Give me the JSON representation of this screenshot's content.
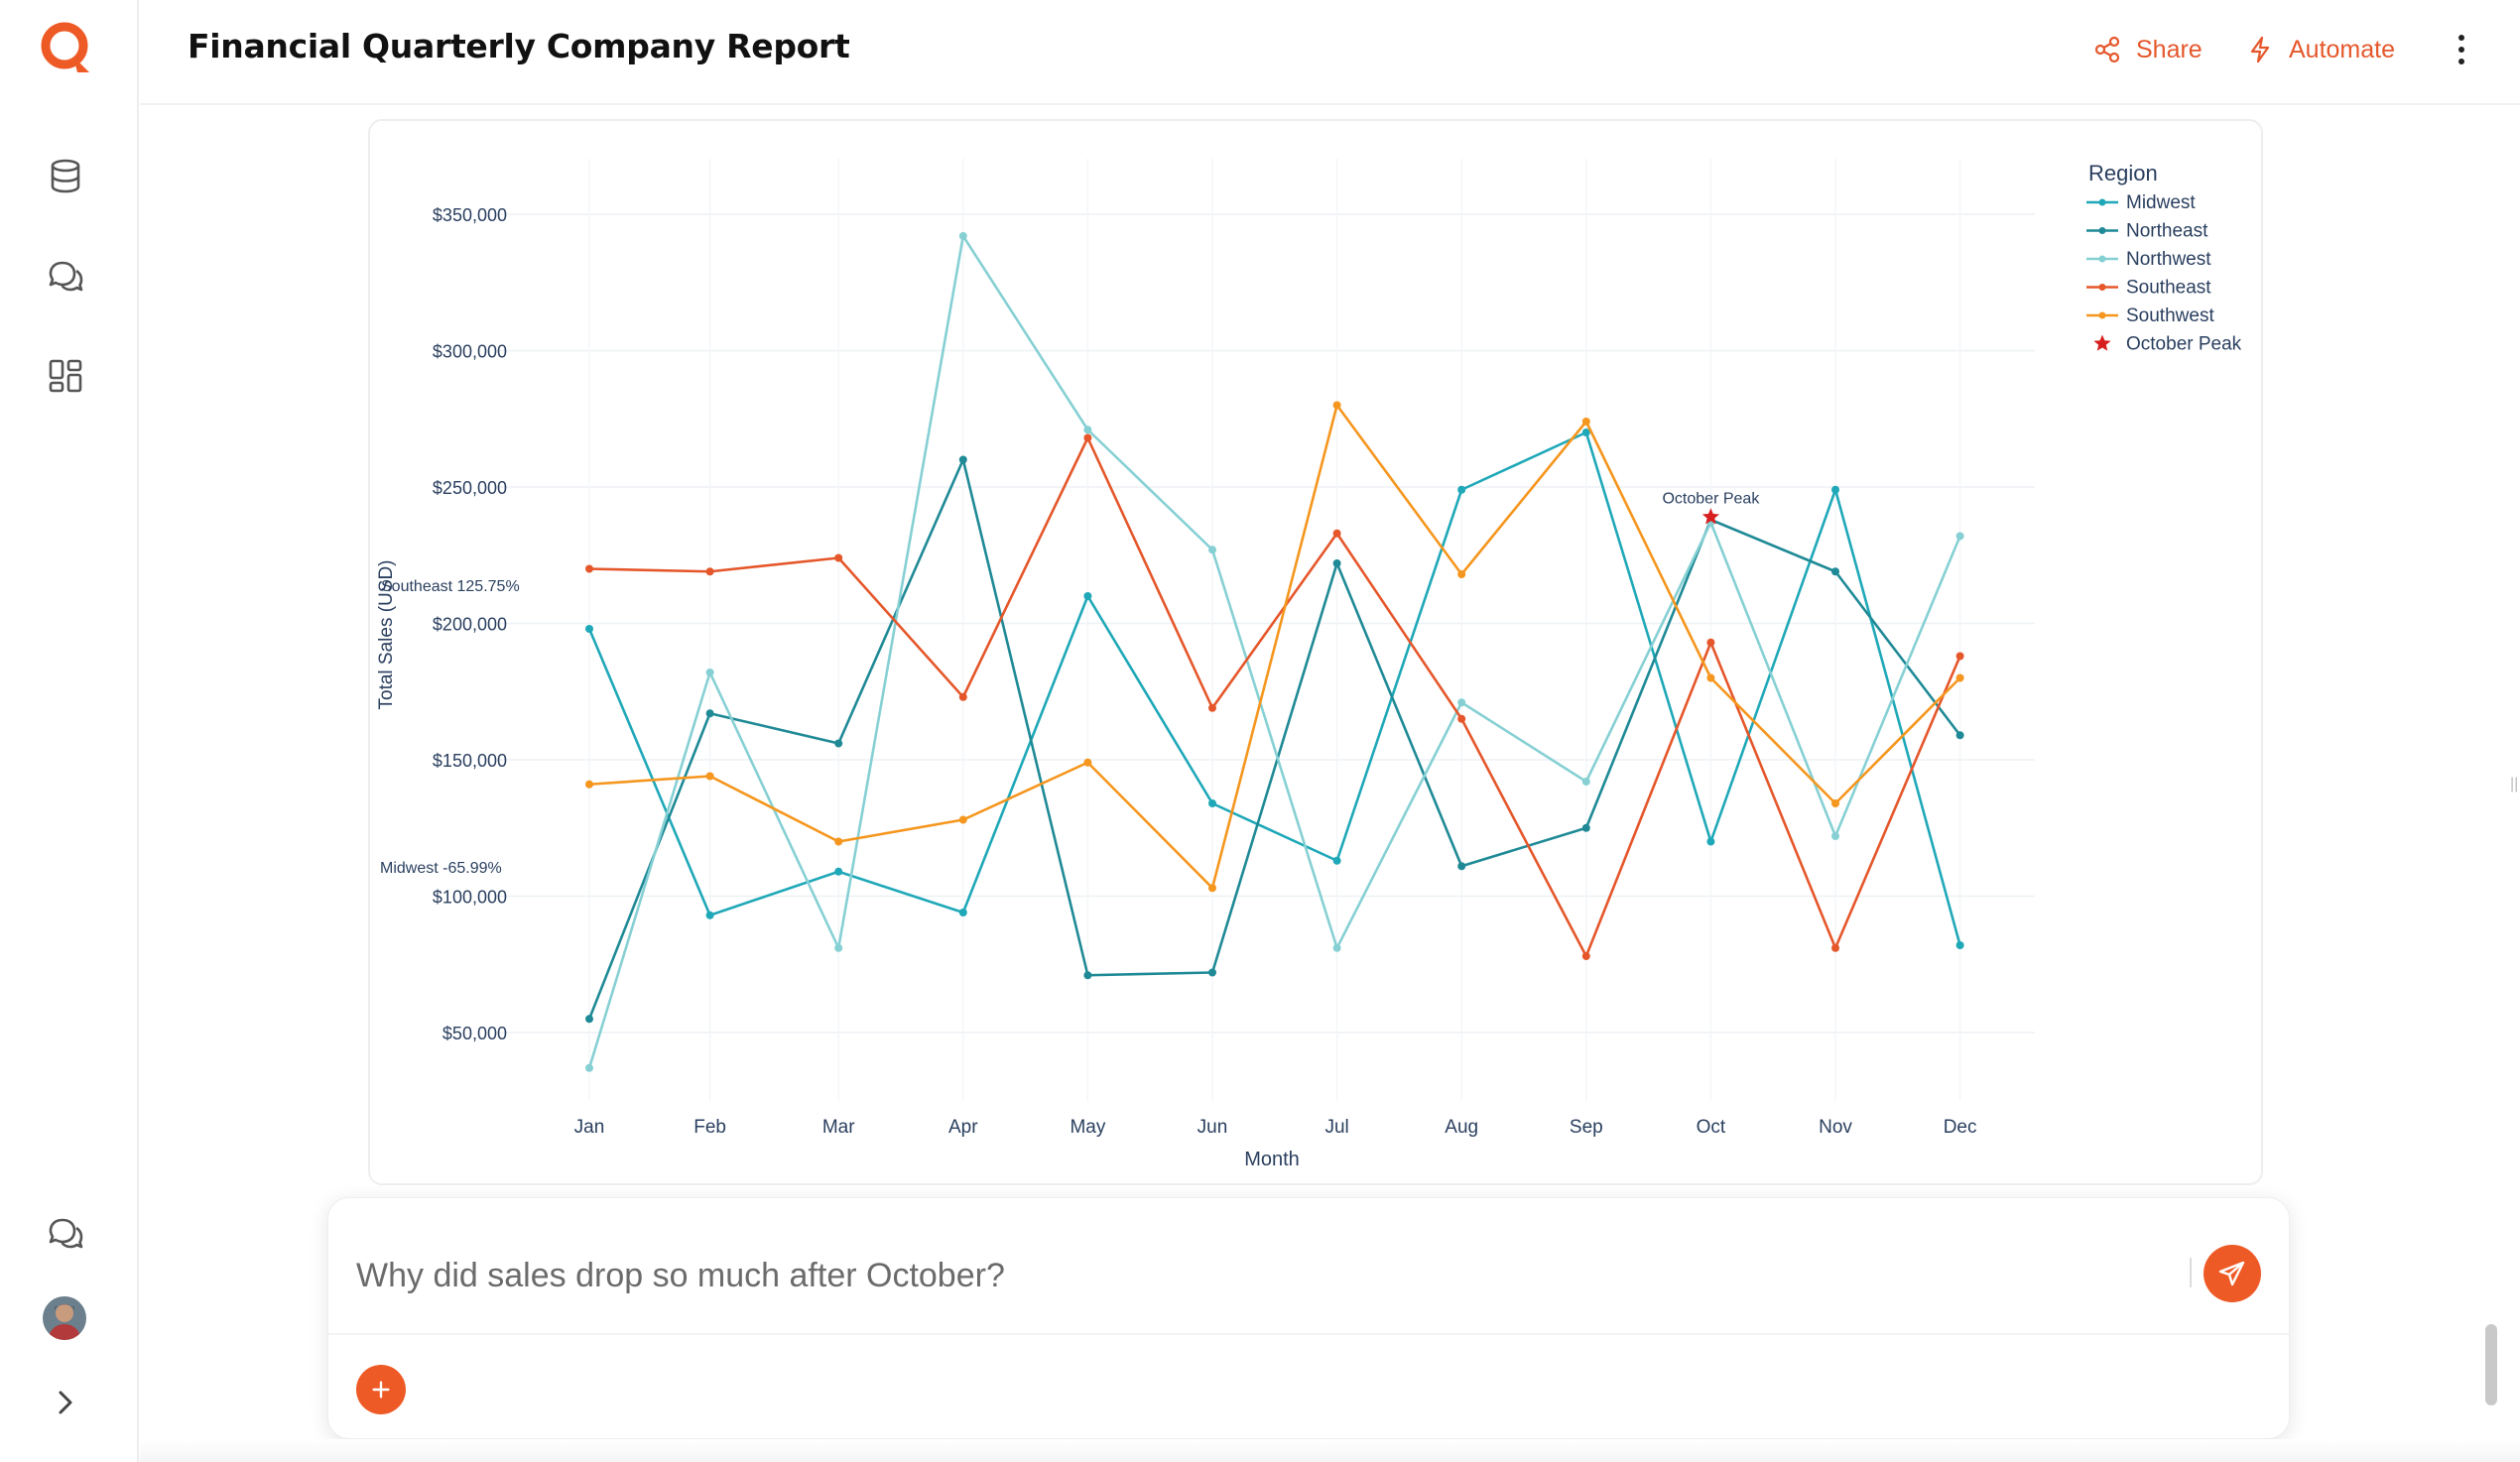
{
  "app": {
    "title": "Financial Quarterly Company Report",
    "accent": "#ee5a26"
  },
  "sidebar": {
    "items": [
      {
        "icon": "database-icon"
      },
      {
        "icon": "chat-bubbles-icon"
      },
      {
        "icon": "dashboard-layout-icon"
      }
    ],
    "bottom": [
      {
        "icon": "chat-bubbles-icon"
      },
      {
        "icon": "avatar"
      },
      {
        "icon": "chevron-right-icon"
      }
    ]
  },
  "header": {
    "share_label": "Share",
    "automate_label": "Automate"
  },
  "composer": {
    "value": "Why did sales drop so much after October?",
    "placeholder": ""
  },
  "chart_data": {
    "type": "line",
    "xlabel": "Month",
    "ylabel": "Total Sales (USD)",
    "yticks": [
      "$50,000",
      "$100,000",
      "$150,000",
      "$200,000",
      "$250,000",
      "$300,000",
      "$350,000"
    ],
    "ylim": [
      30000,
      355000
    ],
    "categories": [
      "Jan",
      "Feb",
      "Mar",
      "Apr",
      "May",
      "Jun",
      "Jul",
      "Aug",
      "Sep",
      "Oct",
      "Nov",
      "Dec"
    ],
    "legend_title": "Region",
    "legend_position": "top-right",
    "grid": true,
    "series": [
      {
        "name": "Midwest",
        "color": "#1fa8b8",
        "values": [
          198000,
          93000,
          109000,
          94000,
          210000,
          134000,
          113000,
          249000,
          270000,
          120000,
          249000,
          82000
        ]
      },
      {
        "name": "Northeast",
        "color": "#1f8a96",
        "values": [
          55000,
          167000,
          156000,
          260000,
          71000,
          72000,
          222000,
          111000,
          125000,
          238000,
          219000,
          159000
        ]
      },
      {
        "name": "Northwest",
        "color": "#86d0d4",
        "values": [
          37000,
          182000,
          81000,
          342000,
          271000,
          227000,
          81000,
          171000,
          142000,
          237000,
          122000,
          232000
        ]
      },
      {
        "name": "Southeast",
        "color": "#e5572b",
        "values": [
          220000,
          219000,
          224000,
          173000,
          268000,
          169000,
          233000,
          165000,
          78000,
          193000,
          81000,
          188000
        ]
      },
      {
        "name": "Southwest",
        "color": "#f5961e",
        "values": [
          141000,
          144000,
          120000,
          128000,
          149000,
          103000,
          280000,
          218000,
          274000,
          180000,
          134000,
          180000
        ]
      }
    ],
    "markers": [
      {
        "name": "October Peak",
        "x": "Oct",
        "y": 239000,
        "color": "#d81f1f",
        "symbol": "star"
      }
    ],
    "annotations": [
      {
        "text": "October Peak",
        "x": "Oct",
        "y": 239000
      },
      {
        "text": "Southeast 125.75%",
        "x": "Jan",
        "y": 205000
      },
      {
        "text": "Midwest -65.99%",
        "x": "Jan",
        "y": 101000
      }
    ]
  }
}
